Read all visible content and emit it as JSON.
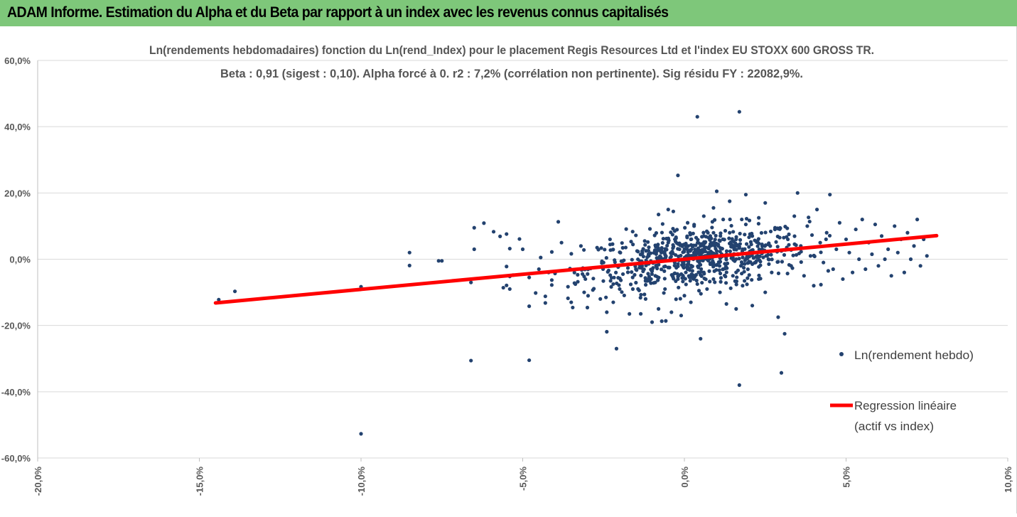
{
  "banner": {
    "title": "ADAM Informe. Estimation du Alpha et du Beta par rapport à un index avec les revenus connus capitalisés",
    "background": "#7ec77a",
    "corner_color": "#f2b800"
  },
  "chart_data": {
    "type": "scatter",
    "title": "Ln(rendements hebdomadaires) fonction du Ln(rend_Index) pour le placement Regis Resources Ltd et l'index EU STOXX 600 GROSS TR.",
    "subtitle": "Beta : 0,91 (sigest : 0,10). Alpha forcé à 0. r2 : 7,2% (corrélation non pertinente). Sig résidu FY : 22082,9%.",
    "xlabel": "",
    "ylabel": "",
    "xlim": [
      -0.2,
      0.1
    ],
    "ylim": [
      -0.6,
      0.6
    ],
    "x_ticks": [
      -0.2,
      -0.15,
      -0.1,
      -0.05,
      0.0,
      0.05,
      0.1
    ],
    "x_tick_labels": [
      "-20,0%",
      "-15,0%",
      "-10,0%",
      "-5,0%",
      "0,0%",
      "5,0%",
      "10,0%"
    ],
    "y_ticks": [
      0.6,
      0.4,
      0.2,
      0.0,
      -0.2,
      -0.4,
      -0.6
    ],
    "y_tick_labels": [
      "60,0%",
      "40,0%",
      "20,0%",
      "0,0%",
      "-20,0%",
      "-40,0%",
      "-60,0%"
    ],
    "grid": "horizontal",
    "legend_position": "right",
    "series": [
      {
        "name": "Ln(rendement hebdo)",
        "kind": "scatter",
        "color": "#23426f",
        "points": [
          [
            -0.144,
            -0.122
          ],
          [
            -0.139,
            -0.097
          ],
          [
            -0.1,
            -0.083
          ],
          [
            -0.1,
            -0.527
          ],
          [
            -0.085,
            0.02
          ],
          [
            -0.085,
            -0.019
          ],
          [
            -0.076,
            -0.005
          ],
          [
            -0.075,
            -0.005
          ],
          [
            -0.066,
            -0.306
          ],
          [
            -0.066,
            -0.07
          ],
          [
            -0.065,
            0.095
          ],
          [
            -0.065,
            0.03
          ],
          [
            -0.062,
            0.109
          ],
          [
            -0.059,
            0.083
          ],
          [
            -0.057,
            0.069
          ],
          [
            -0.056,
            -0.086
          ],
          [
            -0.055,
            -0.079
          ],
          [
            -0.055,
            0.076
          ],
          [
            -0.054,
            -0.09
          ],
          [
            -0.054,
            -0.052
          ],
          [
            -0.053,
            -0.048
          ],
          [
            -0.055,
            -0.022
          ],
          [
            -0.054,
            0.032
          ],
          [
            -0.051,
            0.061
          ],
          [
            -0.05,
            0.03
          ],
          [
            -0.048,
            -0.055
          ],
          [
            -0.048,
            -0.142
          ],
          [
            -0.048,
            -0.305
          ],
          [
            -0.046,
            -0.102
          ],
          [
            -0.045,
            -0.03
          ],
          [
            -0.043,
            -0.112
          ],
          [
            -0.043,
            -0.132
          ],
          [
            -0.042,
            -0.04
          ],
          [
            -0.041,
            0.022
          ],
          [
            -0.041,
            -0.063
          ],
          [
            -0.04,
            -0.043
          ],
          [
            -0.039,
            0.113
          ],
          [
            -0.038,
            0.05
          ],
          [
            -0.036,
            -0.083
          ],
          [
            -0.036,
            -0.118
          ],
          [
            -0.035,
            -0.13
          ],
          [
            -0.034,
            -0.072
          ],
          [
            -0.033,
            -0.047
          ],
          [
            -0.032,
            0.04
          ],
          [
            -0.031,
            -0.1
          ],
          [
            -0.03,
            -0.146
          ],
          [
            -0.029,
            -0.028
          ],
          [
            -0.028,
            -0.089
          ],
          [
            -0.027,
            0.035
          ],
          [
            -0.026,
            -0.12
          ],
          [
            -0.025,
            -0.01
          ],
          [
            -0.024,
            -0.219
          ],
          [
            -0.024,
            -0.16
          ],
          [
            -0.023,
            0.06
          ],
          [
            -0.022,
            -0.075
          ],
          [
            -0.022,
            -0.13
          ],
          [
            -0.021,
            -0.27
          ],
          [
            -0.02,
            0.021
          ],
          [
            -0.019,
            -0.045
          ],
          [
            -0.018,
            0.091
          ],
          [
            -0.017,
            -0.165
          ],
          [
            -0.016,
            -0.055
          ],
          [
            -0.015,
            0.072
          ],
          [
            -0.015,
            -0.03
          ],
          [
            -0.014,
            -0.094
          ],
          [
            -0.013,
            0.02
          ],
          [
            -0.012,
            -0.12
          ],
          [
            -0.011,
            -0.06
          ],
          [
            -0.011,
            0.01
          ],
          [
            -0.01,
            -0.19
          ],
          [
            -0.009,
            -0.05
          ],
          [
            -0.009,
            0.042
          ],
          [
            -0.008,
            -0.15
          ],
          [
            -0.008,
            0.135
          ],
          [
            -0.007,
            -0.187
          ],
          [
            -0.006,
            -0.09
          ],
          [
            -0.005,
            0.05
          ],
          [
            -0.005,
            -0.025
          ],
          [
            -0.005,
            0.15
          ],
          [
            -0.004,
            -0.16
          ],
          [
            -0.003,
            0.085
          ],
          [
            -0.003,
            -0.01
          ],
          [
            -0.002,
            0.253
          ],
          [
            -0.002,
            -0.06
          ],
          [
            -0.001,
            -0.17
          ],
          [
            0.0,
            0.03
          ],
          [
            0.0,
            -0.11
          ],
          [
            0.001,
            0.11
          ],
          [
            0.001,
            -0.03
          ],
          [
            0.002,
            0.06
          ],
          [
            0.002,
            -0.13
          ],
          [
            0.003,
            0.01
          ],
          [
            0.003,
            0.1
          ],
          [
            0.004,
            -0.075
          ],
          [
            0.004,
            0.43
          ],
          [
            0.005,
            -0.24
          ],
          [
            0.005,
            0.04
          ],
          [
            0.006,
            -0.04
          ],
          [
            0.006,
            0.13
          ],
          [
            0.007,
            0.0
          ],
          [
            0.007,
            -0.09
          ],
          [
            0.008,
            0.07
          ],
          [
            0.008,
            -0.015
          ],
          [
            0.009,
            0.155
          ],
          [
            0.009,
            -0.06
          ],
          [
            0.01,
            0.025
          ],
          [
            0.01,
            0.205
          ],
          [
            0.011,
            -0.1
          ],
          [
            0.011,
            0.055
          ],
          [
            0.012,
            -0.03
          ],
          [
            0.012,
            0.12
          ],
          [
            0.013,
            0.015
          ],
          [
            0.013,
            -0.135
          ],
          [
            0.014,
            0.08
          ],
          [
            0.014,
            0.175
          ],
          [
            0.015,
            -0.05
          ],
          [
            0.015,
            0.005
          ],
          [
            0.016,
            -0.15
          ],
          [
            0.016,
            0.06
          ],
          [
            0.017,
            -0.38
          ],
          [
            0.017,
            0.445
          ],
          [
            0.018,
            0.03
          ],
          [
            0.018,
            -0.08
          ],
          [
            0.019,
            0.195
          ],
          [
            0.019,
            0.105
          ],
          [
            0.02,
            -0.01
          ],
          [
            0.021,
            0.07
          ],
          [
            0.021,
            -0.14
          ],
          [
            0.022,
            0.02
          ],
          [
            0.023,
            -0.06
          ],
          [
            0.023,
            0.125
          ],
          [
            0.024,
            0.045
          ],
          [
            0.025,
            -0.1
          ],
          [
            0.025,
            0.17
          ],
          [
            0.026,
            0.0
          ],
          [
            0.027,
            -0.04
          ],
          [
            0.028,
            0.09
          ],
          [
            0.029,
            -0.175
          ],
          [
            0.03,
            -0.343
          ],
          [
            0.03,
            0.025
          ],
          [
            0.031,
            -0.225
          ],
          [
            0.032,
            0.06
          ],
          [
            0.033,
            -0.02
          ],
          [
            0.034,
            0.13
          ],
          [
            0.035,
            0.2
          ],
          [
            0.036,
            0.04
          ],
          [
            0.037,
            -0.05
          ],
          [
            0.038,
            0.1
          ],
          [
            0.039,
            0.01
          ],
          [
            0.04,
            -0.08
          ],
          [
            0.041,
            0.15
          ],
          [
            0.042,
            0.05
          ],
          [
            0.043,
            -0.01
          ],
          [
            0.044,
            0.08
          ],
          [
            0.045,
            0.195
          ],
          [
            0.046,
            -0.03
          ],
          [
            0.047,
            0.03
          ],
          [
            0.048,
            0.11
          ],
          [
            0.049,
            -0.06
          ],
          [
            0.05,
            0.06
          ],
          [
            0.051,
            0.02
          ],
          [
            0.052,
            -0.04
          ],
          [
            0.053,
            0.09
          ],
          [
            0.054,
            0.0
          ],
          [
            0.055,
            0.12
          ],
          [
            0.056,
            -0.03
          ],
          [
            0.057,
            0.05
          ],
          [
            0.058,
            0.015
          ],
          [
            0.059,
            0.105
          ],
          [
            0.06,
            -0.02
          ],
          [
            0.061,
            0.07
          ],
          [
            0.062,
            0.0
          ],
          [
            0.063,
            0.03
          ],
          [
            0.064,
            -0.05
          ],
          [
            0.065,
            0.1
          ],
          [
            0.066,
            0.02
          ],
          [
            0.067,
            0.06
          ],
          [
            0.068,
            -0.04
          ],
          [
            0.069,
            0.08
          ],
          [
            0.07,
            0.0
          ],
          [
            0.071,
            0.04
          ],
          [
            0.072,
            0.12
          ],
          [
            0.073,
            -0.02
          ],
          [
            0.074,
            0.06
          ],
          [
            0.075,
            0.01
          ]
        ]
      },
      {
        "name": "Regression linéaire (actif vs index)",
        "kind": "line",
        "color": "#ff0000",
        "points": [
          [
            -0.145,
            -0.132
          ],
          [
            0.078,
            0.071
          ]
        ]
      }
    ],
    "legend": [
      {
        "label": "Ln(rendement hebdo)",
        "marker": "dot"
      },
      {
        "label_line1": "Regression linéaire",
        "label_line2": "(actif vs index)",
        "marker": "line"
      }
    ]
  }
}
